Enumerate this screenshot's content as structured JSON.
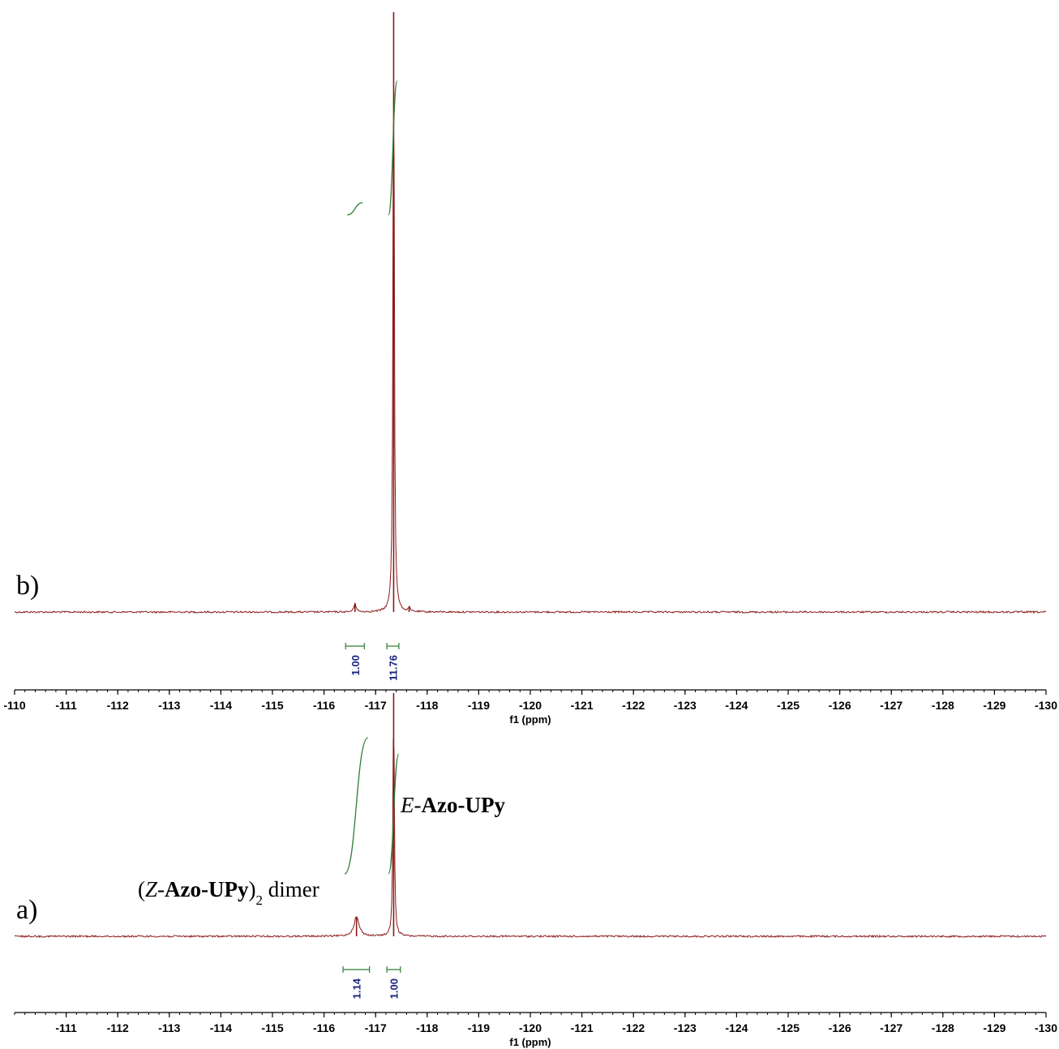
{
  "colors": {
    "spectrum": "#8b1a1a",
    "integral": "#2e7d32",
    "integral_value": "#1a237e",
    "axis": "#000000"
  },
  "chart_data": [
    {
      "panel": "b)",
      "type": "line",
      "xlabel": "f1 (ppm)",
      "xlim": [
        -110,
        -130
      ],
      "x_axis_reversed": true,
      "tick_values": [
        -110,
        -111,
        -112,
        -113,
        -114,
        -115,
        -116,
        -117,
        -118,
        -119,
        -120,
        -121,
        -122,
        -123,
        -124,
        -125,
        -126,
        -127,
        -128,
        -129,
        -130
      ],
      "tick_labels": [
        "-110",
        "-111",
        "-112",
        "-113",
        "-114",
        "-115",
        "-116",
        "-117",
        "-118",
        "-119",
        "-120",
        "-121",
        "-122",
        "-123",
        "-124",
        "-125",
        "-126",
        "-127",
        "-128",
        "-129",
        "-130"
      ],
      "peaks": [
        {
          "ppm": -116.6,
          "relative_height": 0.015,
          "width_ppm": 0.05
        },
        {
          "ppm": -117.35,
          "relative_height": 1.0,
          "width_ppm": 0.03
        },
        {
          "ppm": -117.65,
          "relative_height": 0.008,
          "width_ppm": 0.03
        }
      ],
      "integrals": [
        {
          "from": -116.45,
          "to": -116.75,
          "value": "1.00"
        },
        {
          "from": -117.25,
          "to": -117.42,
          "value": "11.76"
        }
      ],
      "annotations": []
    },
    {
      "panel": "a)",
      "type": "line",
      "xlabel": "f1 (ppm)",
      "xlim": [
        -110,
        -130
      ],
      "x_axis_reversed": true,
      "tick_values": [
        -111,
        -112,
        -113,
        -114,
        -115,
        -116,
        -117,
        -118,
        -119,
        -120,
        -121,
        -122,
        -123,
        -124,
        -125,
        -126,
        -127,
        -128,
        -129,
        -130
      ],
      "tick_labels": [
        "-111",
        "-112",
        "-113",
        "-114",
        "-115",
        "-116",
        "-117",
        "-118",
        "-119",
        "-120",
        "-121",
        "-122",
        "-123",
        "-124",
        "-125",
        "-126",
        "-127",
        "-128",
        "-129",
        "-130"
      ],
      "peaks": [
        {
          "ppm": -116.63,
          "relative_height": 0.08,
          "width_ppm": 0.12
        },
        {
          "ppm": -117.35,
          "relative_height": 1.0,
          "width_ppm": 0.03
        }
      ],
      "integrals": [
        {
          "from": -116.4,
          "to": -116.85,
          "value": "1.14"
        },
        {
          "from": -117.25,
          "to": -117.45,
          "value": "1.00"
        }
      ],
      "annotations": [
        {
          "at_ppm": -116.63,
          "parts": [
            {
              "text": "(",
              "style": "normal"
            },
            {
              "text": "Z",
              "style": "italic"
            },
            {
              "text": "-",
              "style": "normal"
            },
            {
              "text": "Azo-UPy",
              "style": "bold"
            },
            {
              "text": ")",
              "style": "normal"
            },
            {
              "text": "2",
              "style": "subscript"
            },
            {
              "text": "  dimer",
              "style": "normal"
            }
          ]
        },
        {
          "at_ppm": -117.35,
          "parts": [
            {
              "text": "E",
              "style": "italic"
            },
            {
              "text": "-",
              "style": "normal"
            },
            {
              "text": "Azo-UPy",
              "style": "bold"
            }
          ]
        }
      ]
    }
  ]
}
